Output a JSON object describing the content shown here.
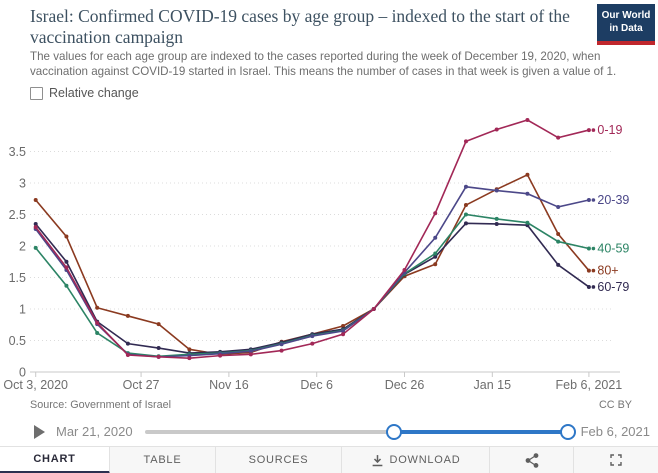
{
  "header": {
    "title": "Israel: Confirmed COVID-19 cases by age group – indexed to the start of the vaccination campaign",
    "subtitle": "The values for each age group are indexed to the cases reported during the week of December 19, 2020, when vaccination against COVID-19 started in Israel. This means the number of cases in that week is given a value of 1.",
    "logo_line1": "Our World",
    "logo_line2": "in Data",
    "logo_bg": "#1d3d63",
    "logo_accent": "#c0272d"
  },
  "controls": {
    "relative_change_label": "Relative change",
    "checkbox_checked": false
  },
  "chart_data": {
    "type": "line",
    "title": "Israel: Confirmed COVID-19 cases by age group – indexed to the start of the vaccination campaign",
    "x": [
      "Oct 3, 2020",
      "Oct 10",
      "Oct 17",
      "Oct 24",
      "Oct 31",
      "Nov 7",
      "Nov 14",
      "Nov 21",
      "Nov 28",
      "Dec 5",
      "Dec 12",
      "Dec 19",
      "Dec 26",
      "Jan 2",
      "Jan 9",
      "Jan 16",
      "Jan 23",
      "Jan 30",
      "Feb 6, 2021"
    ],
    "series": [
      {
        "name": "0-19",
        "color": "#a22857",
        "values": [
          2.3,
          1.66,
          0.78,
          0.27,
          0.24,
          0.22,
          0.26,
          0.28,
          0.34,
          0.45,
          0.6,
          1.0,
          1.62,
          2.52,
          3.66,
          3.85,
          4.0,
          3.72,
          3.84
        ]
      },
      {
        "name": "20-39",
        "color": "#4c4889",
        "values": [
          2.27,
          1.62,
          0.76,
          0.28,
          0.24,
          0.26,
          0.29,
          0.33,
          0.44,
          0.57,
          0.65,
          1.0,
          1.58,
          2.13,
          2.94,
          2.88,
          2.83,
          2.62,
          2.73
        ]
      },
      {
        "name": "40-59",
        "color": "#2c8465",
        "values": [
          1.97,
          1.37,
          0.62,
          0.3,
          0.25,
          0.28,
          0.3,
          0.34,
          0.45,
          0.58,
          0.66,
          1.0,
          1.56,
          1.88,
          2.5,
          2.43,
          2.37,
          2.07,
          1.96
        ]
      },
      {
        "name": "60-79",
        "color": "#312a52",
        "values": [
          2.35,
          1.75,
          0.8,
          0.45,
          0.38,
          0.3,
          0.32,
          0.36,
          0.47,
          0.6,
          0.68,
          1.0,
          1.55,
          1.83,
          2.36,
          2.35,
          2.33,
          1.7,
          1.35
        ]
      },
      {
        "name": "80+",
        "color": "#8b3a20",
        "values": [
          2.73,
          2.15,
          1.02,
          0.89,
          0.76,
          0.36,
          0.28,
          0.31,
          0.48,
          0.6,
          0.73,
          1.0,
          1.52,
          1.71,
          2.65,
          2.9,
          3.13,
          2.19,
          1.61
        ]
      }
    ],
    "yticks": [
      0,
      0.5,
      1,
      1.5,
      2,
      2.5,
      3,
      3.5
    ],
    "ylim": [
      0,
      4.15
    ],
    "xticks": [
      "Oct 3, 2020",
      "Oct 27",
      "Nov 16",
      "Dec 6",
      "Dec 26",
      "Jan 15",
      "Feb 6, 2021"
    ],
    "grid": "horizontal-dotted",
    "legend_position": "right-end-labels",
    "index_note": "all series equal 1.0 at Dec 19"
  },
  "footer": {
    "source": "Source: Government of Israel",
    "license": "CC BY"
  },
  "timeline": {
    "start_date": "Mar 21, 2020",
    "end_date": "Feb 6, 2021",
    "play_icon": "play-icon",
    "slider_color": "#2e77c7"
  },
  "tabs": {
    "chart": "CHART",
    "table": "TABLE",
    "sources": "SOURCES",
    "download": "DOWNLOAD",
    "download_icon": "download-icon",
    "share_icon": "share-icon",
    "fullscreen_icon": "fullscreen-icon"
  }
}
